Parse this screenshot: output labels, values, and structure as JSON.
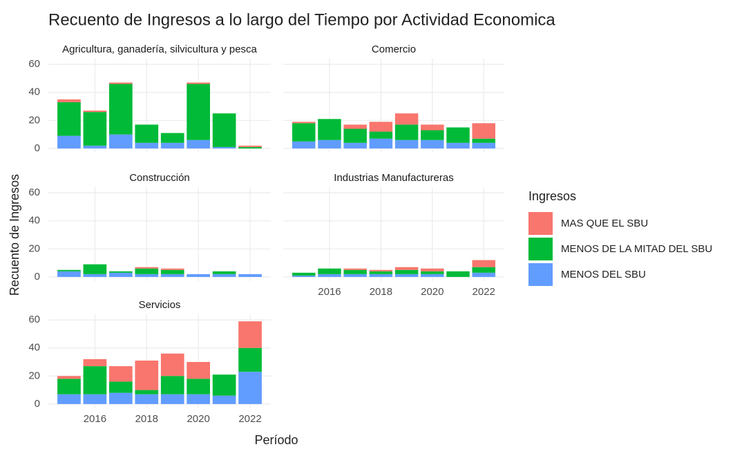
{
  "title": "Recuento de Ingresos a lo largo del Tiempo por Actividad Economica",
  "x_label": "Período",
  "y_label": "Recuento de Ingresos",
  "legend_title": "Ingresos",
  "chart_data": [
    {
      "type": "bar",
      "stacked": true,
      "title": "Agricultura, ganadería, silvicultura y pesca",
      "x": [
        2015,
        2016,
        2017,
        2018,
        2019,
        2020,
        2021,
        2022
      ],
      "series": [
        {
          "name": "MAS QUE EL SBU",
          "color": "#F8766D",
          "values": [
            2,
            1,
            1,
            0,
            0,
            1,
            0,
            1
          ]
        },
        {
          "name": "MENOS DE LA MITAD DEL SBU",
          "color": "#00BA38",
          "values": [
            24,
            24,
            36,
            13,
            7,
            40,
            24,
            1
          ]
        },
        {
          "name": "MENOS DEL SBU",
          "color": "#619CFF",
          "values": [
            9,
            2,
            10,
            4,
            4,
            6,
            1,
            0
          ]
        }
      ],
      "xlim": [
        2014.2,
        2022.8
      ],
      "xticks": [
        2016,
        2018,
        2020,
        2022
      ],
      "ylim": [
        -3,
        64
      ],
      "yticks": [
        0,
        20,
        40,
        60
      ],
      "grid": true,
      "x_tick_labels": false,
      "y_tick_labels": true
    },
    {
      "type": "bar",
      "stacked": true,
      "title": "Comercio",
      "x": [
        2015,
        2016,
        2017,
        2018,
        2019,
        2020,
        2021,
        2022
      ],
      "series": [
        {
          "name": "MAS QUE EL SBU",
          "color": "#F8766D",
          "values": [
            1,
            0,
            3,
            7,
            8,
            4,
            0,
            11
          ]
        },
        {
          "name": "MENOS DE LA MITAD DEL SBU",
          "color": "#00BA38",
          "values": [
            13,
            15,
            10,
            5,
            11,
            7,
            11,
            3
          ]
        },
        {
          "name": "MENOS DEL SBU",
          "color": "#619CFF",
          "values": [
            5,
            6,
            4,
            7,
            6,
            6,
            4,
            4
          ]
        }
      ],
      "xlim": [
        2014.2,
        2022.8
      ],
      "xticks": [
        2016,
        2018,
        2020,
        2022
      ],
      "ylim": [
        -3,
        64
      ],
      "yticks": [
        0,
        20,
        40,
        60
      ],
      "grid": true,
      "x_tick_labels": false,
      "y_tick_labels": false
    },
    {
      "type": "bar",
      "stacked": true,
      "title": "Construcción",
      "x": [
        2015,
        2016,
        2017,
        2018,
        2019,
        2020,
        2021,
        2022
      ],
      "series": [
        {
          "name": "MAS QUE EL SBU",
          "color": "#F8766D",
          "values": [
            0,
            0,
            0,
            1,
            1,
            0,
            0,
            0
          ]
        },
        {
          "name": "MENOS DE LA MITAD DEL SBU",
          "color": "#00BA38",
          "values": [
            1,
            7,
            1,
            4,
            3,
            0,
            2,
            0
          ]
        },
        {
          "name": "MENOS DEL SBU",
          "color": "#619CFF",
          "values": [
            4,
            2,
            3,
            2,
            2,
            2,
            2,
            2
          ]
        }
      ],
      "xlim": [
        2014.2,
        2022.8
      ],
      "xticks": [
        2016,
        2018,
        2020,
        2022
      ],
      "ylim": [
        -3,
        64
      ],
      "yticks": [
        0,
        20,
        40,
        60
      ],
      "grid": true,
      "x_tick_labels": false,
      "y_tick_labels": true
    },
    {
      "type": "bar",
      "stacked": true,
      "title": "Industrias Manufactureras",
      "x": [
        2015,
        2016,
        2017,
        2018,
        2019,
        2020,
        2021,
        2022
      ],
      "series": [
        {
          "name": "MAS QUE EL SBU",
          "color": "#F8766D",
          "values": [
            0,
            0,
            1,
            1,
            2,
            2,
            0,
            5
          ]
        },
        {
          "name": "MENOS DE LA MITAD DEL SBU",
          "color": "#00BA38",
          "values": [
            2,
            4,
            3,
            2,
            3,
            2,
            4,
            4
          ]
        },
        {
          "name": "MENOS DEL SBU",
          "color": "#619CFF",
          "values": [
            1,
            2,
            2,
            2,
            2,
            2,
            0,
            3
          ]
        }
      ],
      "xlim": [
        2014.2,
        2022.8
      ],
      "xticks": [
        2016,
        2018,
        2020,
        2022
      ],
      "ylim": [
        -3,
        64
      ],
      "yticks": [
        0,
        20,
        40,
        60
      ],
      "grid": true,
      "x_tick_labels": true,
      "y_tick_labels": false
    },
    {
      "type": "bar",
      "stacked": true,
      "title": "Servicios",
      "x": [
        2015,
        2016,
        2017,
        2018,
        2019,
        2020,
        2021,
        2022
      ],
      "series": [
        {
          "name": "MAS QUE EL SBU",
          "color": "#F8766D",
          "values": [
            2,
            5,
            11,
            21,
            16,
            12,
            0,
            19
          ]
        },
        {
          "name": "MENOS DE LA MITAD DEL SBU",
          "color": "#00BA38",
          "values": [
            11,
            20,
            8,
            3,
            13,
            11,
            15,
            17
          ]
        },
        {
          "name": "MENOS DEL SBU",
          "color": "#619CFF",
          "values": [
            7,
            7,
            8,
            7,
            7,
            7,
            6,
            23
          ]
        }
      ],
      "xlim": [
        2014.2,
        2022.8
      ],
      "xticks": [
        2016,
        2018,
        2020,
        2022
      ],
      "ylim": [
        -3,
        64
      ],
      "yticks": [
        0,
        20,
        40,
        60
      ],
      "grid": true,
      "x_tick_labels": true,
      "y_tick_labels": true
    }
  ]
}
